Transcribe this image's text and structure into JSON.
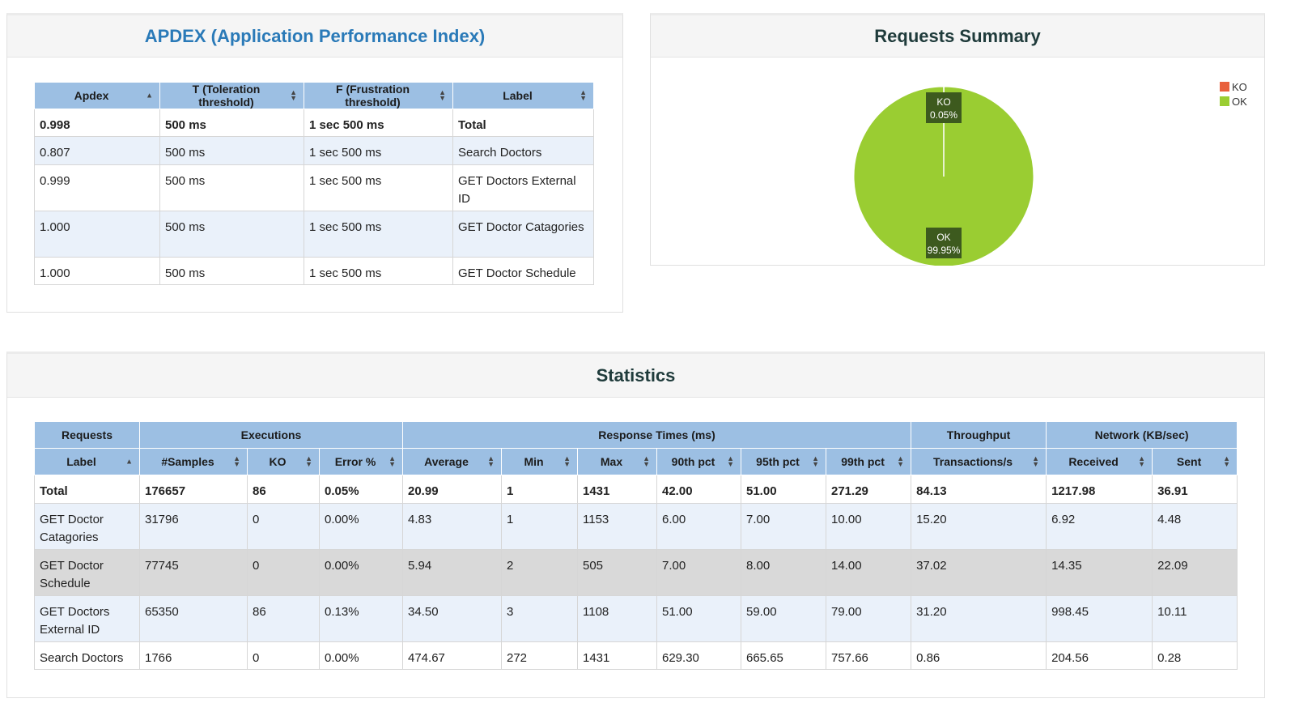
{
  "apdex": {
    "title": "APDEX (Application Performance Index)",
    "columns": [
      "Apdex",
      "T (Toleration threshold)",
      "F (Frustration threshold)",
      "Label"
    ],
    "rows": [
      {
        "apdex": "0.998",
        "t": "500 ms",
        "f": "1 sec 500 ms",
        "label": "Total"
      },
      {
        "apdex": "0.807",
        "t": "500 ms",
        "f": "1 sec 500 ms",
        "label": "Search Doctors"
      },
      {
        "apdex": "0.999",
        "t": "500 ms",
        "f": "1 sec 500 ms",
        "label": "GET Doctors External ID"
      },
      {
        "apdex": "1.000",
        "t": "500 ms",
        "f": "1 sec 500 ms",
        "label": "GET Doctor Catagories"
      },
      {
        "apdex": "1.000",
        "t": "500 ms",
        "f": "1 sec 500 ms",
        "label": "GET Doctor Schedule"
      }
    ]
  },
  "summary": {
    "title": "Requests Summary",
    "colors": {
      "ko": "#e8603c",
      "ok": "#9acd32",
      "label_bg": "#3d5a1e"
    },
    "legend": [
      "KO",
      "OK"
    ]
  },
  "chart_data": {
    "type": "pie",
    "title": "Requests Summary",
    "categories": [
      "KO",
      "OK"
    ],
    "values": [
      0.05,
      99.95
    ],
    "labels": [
      "0.05%",
      "99.95%"
    ],
    "legend_position": "top-right"
  },
  "stats": {
    "title": "Statistics",
    "groups": [
      "Requests",
      "Executions",
      "Response Times (ms)",
      "Throughput",
      "Network (KB/sec)"
    ],
    "columns": [
      "Label",
      "#Samples",
      "KO",
      "Error %",
      "Average",
      "Min",
      "Max",
      "90th pct",
      "95th pct",
      "99th pct",
      "Transactions/s",
      "Received",
      "Sent"
    ],
    "rows": [
      [
        "Total",
        "176657",
        "86",
        "0.05%",
        "20.99",
        "1",
        "1431",
        "42.00",
        "51.00",
        "271.29",
        "84.13",
        "1217.98",
        "36.91"
      ],
      [
        "GET Doctor Catagories",
        "31796",
        "0",
        "0.00%",
        "4.83",
        "1",
        "1153",
        "6.00",
        "7.00",
        "10.00",
        "15.20",
        "6.92",
        "4.48"
      ],
      [
        "GET Doctor Schedule",
        "77745",
        "0",
        "0.00%",
        "5.94",
        "2",
        "505",
        "7.00",
        "8.00",
        "14.00",
        "37.02",
        "14.35",
        "22.09"
      ],
      [
        "GET Doctors External ID",
        "65350",
        "86",
        "0.13%",
        "34.50",
        "3",
        "1108",
        "51.00",
        "59.00",
        "79.00",
        "31.20",
        "998.45",
        "10.11"
      ],
      [
        "Search Doctors",
        "1766",
        "0",
        "0.00%",
        "474.67",
        "272",
        "1431",
        "629.30",
        "665.65",
        "757.66",
        "0.86",
        "204.56",
        "0.28"
      ]
    ]
  }
}
